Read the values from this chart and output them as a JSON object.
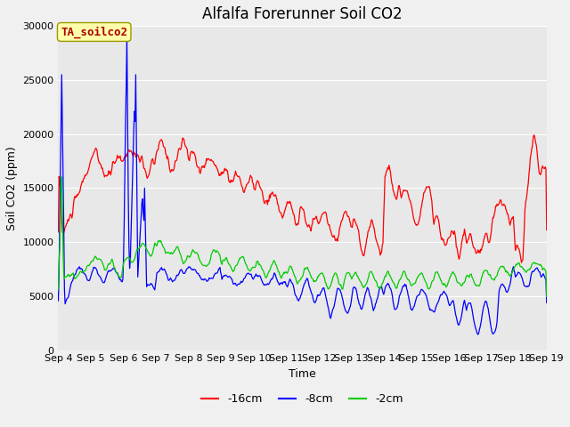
{
  "title": "Alfalfa Forerunner Soil CO2",
  "ylabel": "Soil CO2 (ppm)",
  "xlabel": "Time",
  "annotation": "TA_soilco2",
  "ylim": [
    0,
    30000
  ],
  "yticks": [
    0,
    5000,
    10000,
    15000,
    20000,
    25000,
    30000
  ],
  "xtick_labels": [
    "Sep 4",
    "Sep 5",
    "Sep 6",
    "Sep 7",
    "Sep 8",
    "Sep 9",
    "Sep 10",
    "Sep 11",
    "Sep 12",
    "Sep 13",
    "Sep 14",
    "Sep 15",
    "Sep 16",
    "Sep 17",
    "Sep 18",
    "Sep 19"
  ],
  "line_colors": {
    "red": "#ff0000",
    "blue": "#0000ff",
    "green": "#00cc00"
  },
  "legend_labels": [
    "-16cm",
    "-8cm",
    "-2cm"
  ],
  "background_color": "#f0f0f0",
  "plot_bg_color": "#e8e8e8",
  "title_fontsize": 12,
  "axis_fontsize": 9,
  "tick_fontsize": 8,
  "n_points": 720
}
